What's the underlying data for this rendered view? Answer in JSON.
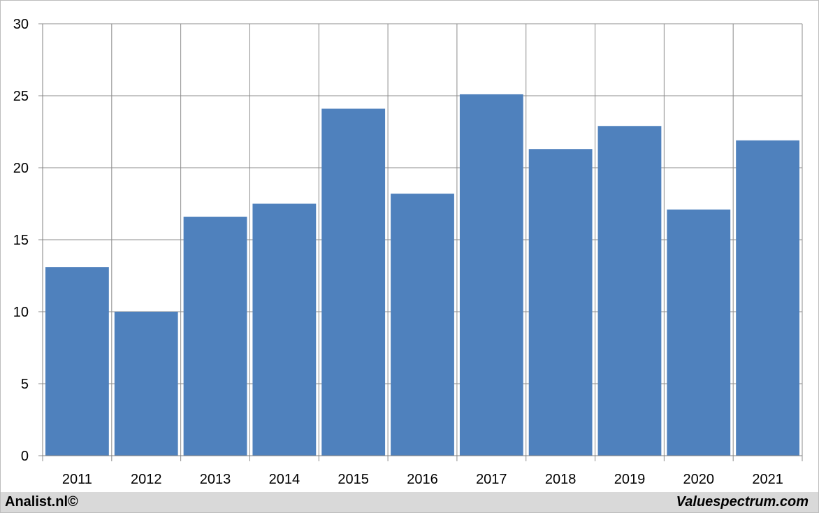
{
  "chart_data": {
    "type": "bar",
    "categories": [
      "2011",
      "2012",
      "2013",
      "2014",
      "2015",
      "2016",
      "2017",
      "2018",
      "2019",
      "2020",
      "2021"
    ],
    "values": [
      13.1,
      10.0,
      16.6,
      17.5,
      24.1,
      18.2,
      25.1,
      21.3,
      22.9,
      17.1,
      21.9
    ],
    "title": "",
    "xlabel": "",
    "ylabel": "",
    "ylim": [
      0,
      30
    ],
    "yticks": [
      0,
      5,
      10,
      15,
      20,
      25,
      30
    ],
    "grid": true,
    "bar_color": "#4f81bd",
    "grid_color": "#8c8c8c"
  },
  "footer": {
    "left": "Analist.nl©",
    "right": "Valuespectrum.com"
  }
}
